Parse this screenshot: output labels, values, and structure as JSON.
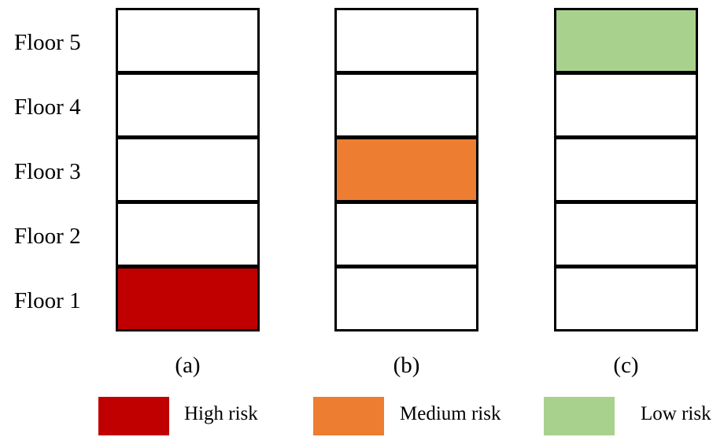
{
  "floors": [
    "Floor 5",
    "Floor 4",
    "Floor 3",
    "Floor 2",
    "Floor 1"
  ],
  "panels": [
    {
      "label": "(a)",
      "highlighted_floor": 1,
      "risk": "high"
    },
    {
      "label": "(b)",
      "highlighted_floor": 3,
      "risk": "medium"
    },
    {
      "label": "(c)",
      "highlighted_floor": 5,
      "risk": "low"
    }
  ],
  "legend": [
    {
      "key": "high",
      "label": "High risk",
      "color": "#C00000"
    },
    {
      "key": "medium",
      "label": "Medium risk",
      "color": "#ED7D31"
    },
    {
      "key": "low",
      "label": "Low risk",
      "color": "#A9D18E"
    }
  ]
}
